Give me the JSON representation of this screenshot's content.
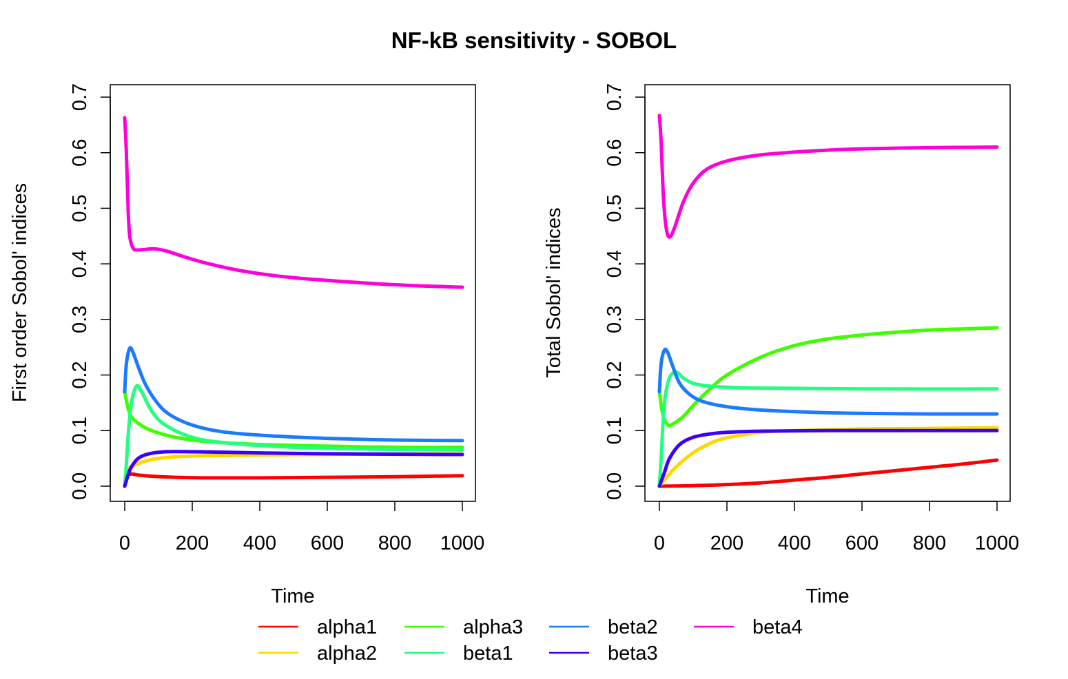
{
  "title": "NF-kB sensitivity - SOBOL",
  "legend": [
    {
      "label": "alpha1",
      "color": "#ff0000"
    },
    {
      "label": "alpha2",
      "color": "#ffd700"
    },
    {
      "label": "alpha3",
      "color": "#3eff00"
    },
    {
      "label": "beta1",
      "color": "#23ff7f"
    },
    {
      "label": "beta2",
      "color": "#1b7bff"
    },
    {
      "label": "beta3",
      "color": "#3b00ff"
    },
    {
      "label": "beta4",
      "color": "#ff00d9"
    }
  ],
  "chart_data": [
    {
      "type": "line",
      "xlabel": "Time",
      "ylabel": "First order Sobol' indices",
      "xlim": [
        0,
        1000
      ],
      "ylim": [
        0,
        0.7
      ],
      "xticks": [
        "0",
        "200",
        "400",
        "600",
        "800",
        "1000"
      ],
      "yticks": [
        "0.0",
        "0.1",
        "0.2",
        "0.3",
        "0.4",
        "0.5",
        "0.6",
        "0.7"
      ],
      "series": [
        {
          "name": "alpha1",
          "color": "#ff0000",
          "points": [
            [
              0,
              0
            ],
            [
              5,
              0.012
            ],
            [
              10,
              0.02
            ],
            [
              20,
              0.022
            ],
            [
              40,
              0.02
            ],
            [
              80,
              0.018
            ],
            [
              150,
              0.016
            ],
            [
              250,
              0.015
            ],
            [
              400,
              0.015
            ],
            [
              600,
              0.016
            ],
            [
              800,
              0.017
            ],
            [
              1000,
              0.019
            ]
          ]
        },
        {
          "name": "alpha2",
          "color": "#ffd700",
          "points": [
            [
              0,
              0
            ],
            [
              5,
              0.025
            ],
            [
              15,
              0.033
            ],
            [
              30,
              0.038
            ],
            [
              60,
              0.045
            ],
            [
              100,
              0.05
            ],
            [
              150,
              0.053
            ],
            [
              250,
              0.055
            ],
            [
              400,
              0.056
            ],
            [
              600,
              0.057
            ],
            [
              800,
              0.058
            ],
            [
              1000,
              0.058
            ]
          ]
        },
        {
          "name": "alpha3",
          "color": "#3eff00",
          "points": [
            [
              0,
              0.17
            ],
            [
              10,
              0.14
            ],
            [
              20,
              0.125
            ],
            [
              40,
              0.113
            ],
            [
              80,
              0.1
            ],
            [
              150,
              0.088
            ],
            [
              250,
              0.08
            ],
            [
              400,
              0.075
            ],
            [
              600,
              0.072
            ],
            [
              800,
              0.07
            ],
            [
              1000,
              0.07
            ]
          ]
        },
        {
          "name": "beta1",
          "color": "#23ff7f",
          "points": [
            [
              0,
              0
            ],
            [
              5,
              0.04
            ],
            [
              10,
              0.09
            ],
            [
              20,
              0.15
            ],
            [
              35,
              0.18
            ],
            [
              50,
              0.17
            ],
            [
              80,
              0.135
            ],
            [
              120,
              0.11
            ],
            [
              200,
              0.088
            ],
            [
              300,
              0.078
            ],
            [
              500,
              0.07
            ],
            [
              700,
              0.067
            ],
            [
              1000,
              0.065
            ]
          ]
        },
        {
          "name": "beta2",
          "color": "#1b7bff",
          "points": [
            [
              0,
              0.17
            ],
            [
              5,
              0.22
            ],
            [
              15,
              0.248
            ],
            [
              25,
              0.24
            ],
            [
              40,
              0.215
            ],
            [
              60,
              0.185
            ],
            [
              90,
              0.155
            ],
            [
              130,
              0.13
            ],
            [
              200,
              0.11
            ],
            [
              300,
              0.097
            ],
            [
              450,
              0.09
            ],
            [
              600,
              0.086
            ],
            [
              800,
              0.083
            ],
            [
              1000,
              0.082
            ]
          ]
        },
        {
          "name": "beta3",
          "color": "#3b00ff",
          "points": [
            [
              0,
              0
            ],
            [
              10,
              0.02
            ],
            [
              20,
              0.035
            ],
            [
              40,
              0.05
            ],
            [
              70,
              0.058
            ],
            [
              120,
              0.062
            ],
            [
              200,
              0.062
            ],
            [
              300,
              0.061
            ],
            [
              500,
              0.059
            ],
            [
              700,
              0.058
            ],
            [
              1000,
              0.057
            ]
          ]
        },
        {
          "name": "beta4",
          "color": "#ff00d9",
          "points": [
            [
              0,
              0.663
            ],
            [
              5,
              0.6
            ],
            [
              10,
              0.5
            ],
            [
              15,
              0.45
            ],
            [
              25,
              0.428
            ],
            [
              40,
              0.425
            ],
            [
              60,
              0.426
            ],
            [
              90,
              0.427
            ],
            [
              130,
              0.422
            ],
            [
              180,
              0.412
            ],
            [
              250,
              0.4
            ],
            [
              350,
              0.387
            ],
            [
              500,
              0.375
            ],
            [
              700,
              0.366
            ],
            [
              850,
              0.361
            ],
            [
              1000,
              0.358
            ]
          ]
        }
      ]
    },
    {
      "type": "line",
      "xlabel": "Time",
      "ylabel": "Total Sobol' indices",
      "xlim": [
        0,
        1000
      ],
      "ylim": [
        0,
        0.7
      ],
      "xticks": [
        "0",
        "200",
        "400",
        "600",
        "800",
        "1000"
      ],
      "yticks": [
        "0.0",
        "0.1",
        "0.2",
        "0.3",
        "0.4",
        "0.5",
        "0.6",
        "0.7"
      ],
      "series": [
        {
          "name": "alpha1",
          "color": "#ff0000",
          "points": [
            [
              0,
              0
            ],
            [
              100,
              0.001
            ],
            [
              200,
              0.003
            ],
            [
              300,
              0.006
            ],
            [
              400,
              0.011
            ],
            [
              500,
              0.016
            ],
            [
              600,
              0.022
            ],
            [
              700,
              0.028
            ],
            [
              800,
              0.034
            ],
            [
              900,
              0.04
            ],
            [
              1000,
              0.047
            ]
          ]
        },
        {
          "name": "alpha2",
          "color": "#ffd700",
          "points": [
            [
              0,
              0
            ],
            [
              20,
              0.015
            ],
            [
              50,
              0.035
            ],
            [
              100,
              0.06
            ],
            [
              150,
              0.077
            ],
            [
              200,
              0.087
            ],
            [
              300,
              0.097
            ],
            [
              400,
              0.1
            ],
            [
              600,
              0.103
            ],
            [
              800,
              0.104
            ],
            [
              1000,
              0.105
            ]
          ]
        },
        {
          "name": "alpha3",
          "color": "#3eff00",
          "points": [
            [
              0,
              0.17
            ],
            [
              10,
              0.13
            ],
            [
              25,
              0.11
            ],
            [
              40,
              0.112
            ],
            [
              70,
              0.125
            ],
            [
              100,
              0.145
            ],
            [
              150,
              0.175
            ],
            [
              200,
              0.2
            ],
            [
              300,
              0.232
            ],
            [
              400,
              0.253
            ],
            [
              500,
              0.265
            ],
            [
              600,
              0.272
            ],
            [
              700,
              0.277
            ],
            [
              800,
              0.281
            ],
            [
              900,
              0.283
            ],
            [
              1000,
              0.285
            ]
          ]
        },
        {
          "name": "beta1",
          "color": "#23ff7f",
          "points": [
            [
              0,
              0
            ],
            [
              5,
              0.05
            ],
            [
              15,
              0.15
            ],
            [
              30,
              0.195
            ],
            [
              50,
              0.205
            ],
            [
              70,
              0.195
            ],
            [
              100,
              0.185
            ],
            [
              150,
              0.18
            ],
            [
              250,
              0.177
            ],
            [
              400,
              0.176
            ],
            [
              600,
              0.175
            ],
            [
              1000,
              0.175
            ]
          ]
        },
        {
          "name": "beta2",
          "color": "#1b7bff",
          "points": [
            [
              0,
              0.17
            ],
            [
              5,
              0.22
            ],
            [
              15,
              0.245
            ],
            [
              25,
              0.24
            ],
            [
              40,
              0.215
            ],
            [
              60,
              0.185
            ],
            [
              90,
              0.165
            ],
            [
              130,
              0.152
            ],
            [
              200,
              0.143
            ],
            [
              300,
              0.137
            ],
            [
              450,
              0.133
            ],
            [
              600,
              0.131
            ],
            [
              800,
              0.13
            ],
            [
              1000,
              0.13
            ]
          ]
        },
        {
          "name": "beta3",
          "color": "#3b00ff",
          "points": [
            [
              0,
              0
            ],
            [
              15,
              0.025
            ],
            [
              30,
              0.05
            ],
            [
              60,
              0.075
            ],
            [
              100,
              0.088
            ],
            [
              150,
              0.094
            ],
            [
              200,
              0.097
            ],
            [
              300,
              0.099
            ],
            [
              500,
              0.1
            ],
            [
              700,
              0.1
            ],
            [
              1000,
              0.1
            ]
          ]
        },
        {
          "name": "beta4",
          "color": "#ff00d9",
          "points": [
            [
              0,
              0.667
            ],
            [
              5,
              0.62
            ],
            [
              12,
              0.52
            ],
            [
              20,
              0.465
            ],
            [
              30,
              0.448
            ],
            [
              45,
              0.465
            ],
            [
              70,
              0.51
            ],
            [
              100,
              0.545
            ],
            [
              140,
              0.57
            ],
            [
              200,
              0.585
            ],
            [
              300,
              0.596
            ],
            [
              450,
              0.603
            ],
            [
              600,
              0.607
            ],
            [
              800,
              0.609
            ],
            [
              1000,
              0.61
            ]
          ]
        }
      ]
    }
  ]
}
